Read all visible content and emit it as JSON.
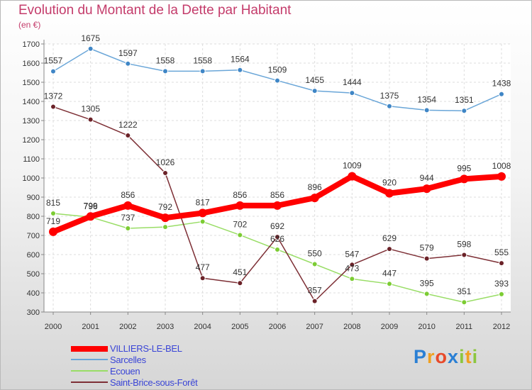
{
  "chart_data": {
    "type": "line",
    "title": "Evolution du Montant de la Dette par Habitant",
    "subtitle": "(en €)",
    "categories": [
      "2000",
      "2001",
      "2002",
      "2003",
      "2004",
      "2005",
      "2006",
      "2007",
      "2008",
      "2009",
      "2010",
      "2011",
      "2012"
    ],
    "ylim": [
      300,
      1700
    ],
    "yticks": [
      300,
      400,
      500,
      600,
      700,
      800,
      900,
      1000,
      1100,
      1200,
      1300,
      1400,
      1500,
      1600,
      1700
    ],
    "grid": true,
    "series": [
      {
        "name": "VILLIERS-LE-BEL",
        "color": "#ff0000",
        "marker_color": "#ff0000",
        "values": [
          719,
          799,
          856,
          792,
          817,
          856,
          856,
          896,
          1009,
          920,
          944,
          995,
          1008
        ],
        "labels": [
          "719",
          "799",
          "856",
          "792",
          "817",
          "856",
          "856",
          "896",
          "1009",
          "920",
          "944",
          "995",
          "1008"
        ]
      },
      {
        "name": "Sarcelles",
        "color": "#6aa6d8",
        "marker_color": "#3f86c6",
        "values": [
          1557,
          1675,
          1597,
          1558,
          1558,
          1564,
          1509,
          1455,
          1444,
          1375,
          1354,
          1351,
          1438
        ],
        "labels": [
          "1557",
          "1675",
          "1597",
          "1558",
          "1558",
          "1564",
          "1509",
          "1455",
          "1444",
          "1375",
          "1354",
          "1351",
          "1438"
        ]
      },
      {
        "name": "Ecouen",
        "color": "#99dd66",
        "marker_color": "#7ccc33",
        "values": [
          815,
          796,
          737,
          744,
          772,
          702,
          626,
          550,
          473,
          447,
          395,
          351,
          393
        ],
        "labels": [
          "815",
          "796",
          "737",
          "",
          "",
          "702",
          "626",
          "550",
          "473",
          "447",
          "395",
          "351",
          "393"
        ]
      },
      {
        "name": "Saint-Brice-sous-Forêt",
        "color": "#7d2f35",
        "marker_color": "#6b2228",
        "values": [
          1372,
          1305,
          1222,
          1026,
          477,
          451,
          692,
          357,
          547,
          629,
          579,
          598,
          555
        ],
        "labels": [
          "1372",
          "1305",
          "1222",
          "1026",
          "477",
          "451",
          "692",
          "357",
          "547",
          "629",
          "579",
          "598",
          "555"
        ]
      }
    ]
  },
  "legend": {
    "items": [
      {
        "label": "VILLIERS-LE-BEL",
        "color": "#ff0000"
      },
      {
        "label": "Sarcelles",
        "color": "#6aa6d8"
      },
      {
        "label": "Ecouen",
        "color": "#99dd66"
      },
      {
        "label": "Saint-Brice-sous-Forêt",
        "color": "#7d2f35"
      }
    ]
  },
  "logo": {
    "letters": [
      {
        "ch": "P",
        "color": "#2a7fd4"
      },
      {
        "ch": "r",
        "color": "#f0a020"
      },
      {
        "ch": "o",
        "color": "#e84a2a"
      },
      {
        "ch": "x",
        "color": "#2a7fd4"
      },
      {
        "ch": "i",
        "color": "#8cc63f"
      },
      {
        "ch": "t",
        "color": "#f0a020"
      },
      {
        "ch": "i",
        "color": "#8cc63f"
      }
    ]
  }
}
